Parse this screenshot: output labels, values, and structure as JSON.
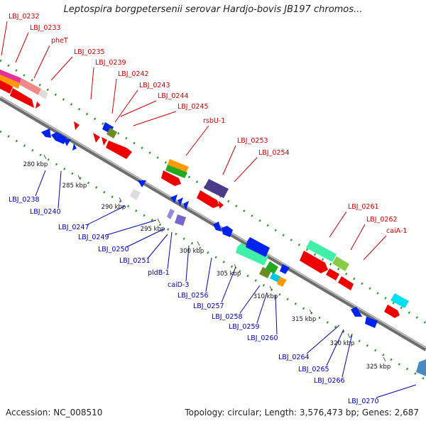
{
  "title": "Leptospira borgpetersenii serovar Hardjo-bovis JB197 chromos...",
  "accession": "Accession: NC_008510",
  "summary": "Topology: circular; Length: 3,576,473 bp; Genes: 2,687",
  "ticks": [
    "280 kbp",
    "285 kbp",
    "290 kbp",
    "295 kbp",
    "300 kbp",
    "305 kbp",
    "310 kbp",
    "315 kbp",
    "320 kbp",
    "325 kbp"
  ],
  "forward_labels": [
    "LBJ_0232",
    "LBJ_0233",
    "pheT",
    "LBJ_0235",
    "LBJ_0239",
    "LBJ_0242",
    "LBJ_0243",
    "LBJ_0244",
    "LBJ_0245",
    "rsbU-1",
    "LBJ_0253",
    "LBJ_0254",
    "LBJ_0261",
    "LBJ_0262",
    "caiA-1"
  ],
  "reverse_labels": [
    "LBJ_0238",
    "LBJ_0240",
    "LBJ_0247",
    "LBJ_0249",
    "LBJ_0250",
    "LBJ_0251",
    "pldB-1",
    "caiD-3",
    "LBJ_0256",
    "LBJ_0257",
    "LBJ_0258",
    "LBJ_0259",
    "LBJ_0260",
    "LBJ_0264",
    "LBJ_0265",
    "LBJ_0266",
    "LBJ_0270"
  ],
  "colors": {
    "forward_gene": "#ee0000",
    "reverse_gene": "#0022ee",
    "backbone": "#8a8a8a",
    "gc_dots": "#229922",
    "label_forward": "#cc0000",
    "label_reverse": "#0000b0"
  }
}
